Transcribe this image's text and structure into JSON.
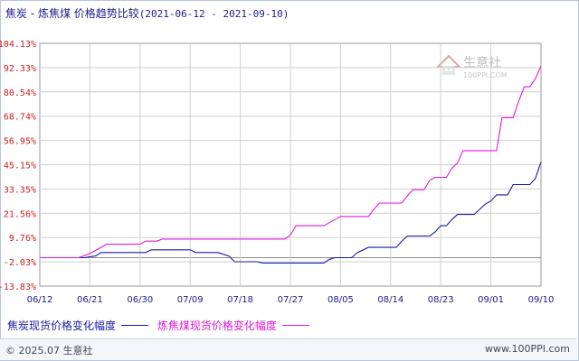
{
  "header": {
    "title": "焦炭 - 炼焦煤 价格趋势比较",
    "date_range": "(2021-06-12 - 2021-09-10)"
  },
  "watermark": {
    "brand": "生意社",
    "site": "100PPI.COM"
  },
  "footer": {
    "copyright": "© 2025.07 生意社",
    "site": "www.100PPI.com"
  },
  "colors": {
    "series1": "#1a1aa6",
    "series2": "#e01bd8",
    "axis_label": "#cc1f1f",
    "grid": "#cfcfcf"
  },
  "chart_data": {
    "type": "line",
    "x_ticks": [
      "06/12",
      "06/21",
      "06/30",
      "07/09",
      "07/18",
      "07/27",
      "08/05",
      "08/14",
      "08/23",
      "09/01",
      "09/10"
    ],
    "y_ticks": [
      "104.13%",
      "92.33%",
      "80.54%",
      "68.74%",
      "56.95%",
      "45.15%",
      "33.35%",
      "21.56%",
      "9.76%",
      "-2.03%",
      "-13.83%"
    ],
    "ylim": [
      -13.83,
      104.13
    ],
    "xlim": [
      "2021-06-12",
      "2021-09-10"
    ],
    "grid": true,
    "legend_position": "bottom",
    "series": [
      {
        "name": "焦炭现货价格变化幅度",
        "points": [
          [
            "2021-06-12",
            0
          ],
          [
            "2021-06-20",
            0
          ],
          [
            "2021-06-22",
            0.8
          ],
          [
            "2021-06-23",
            2.5
          ],
          [
            "2021-07-01",
            2.5
          ],
          [
            "2021-07-02",
            3.8
          ],
          [
            "2021-07-09",
            3.8
          ],
          [
            "2021-07-10",
            2.5
          ],
          [
            "2021-07-14",
            2.5
          ],
          [
            "2021-07-16",
            0.7
          ],
          [
            "2021-07-17",
            -2.0
          ],
          [
            "2021-07-21",
            -2.0
          ],
          [
            "2021-07-22",
            -2.6
          ],
          [
            "2021-08-02",
            -2.6
          ],
          [
            "2021-08-03",
            -0.8
          ],
          [
            "2021-08-04",
            0
          ],
          [
            "2021-08-07",
            0
          ],
          [
            "2021-08-08",
            2.4
          ],
          [
            "2021-08-10",
            5.0
          ],
          [
            "2021-08-15",
            5.0
          ],
          [
            "2021-08-16",
            8.0
          ],
          [
            "2021-08-17",
            10.5
          ],
          [
            "2021-08-21",
            10.5
          ],
          [
            "2021-08-22",
            12.5
          ],
          [
            "2021-08-23",
            15.5
          ],
          [
            "2021-08-24",
            15.5
          ],
          [
            "2021-08-25",
            18.5
          ],
          [
            "2021-08-26",
            21.0
          ],
          [
            "2021-08-29",
            21.0
          ],
          [
            "2021-08-30",
            23.5
          ],
          [
            "2021-08-31",
            26.0
          ],
          [
            "2021-09-01",
            27.5
          ],
          [
            "2021-09-02",
            30.5
          ],
          [
            "2021-09-04",
            30.5
          ],
          [
            "2021-09-05",
            35.5
          ],
          [
            "2021-09-08",
            35.5
          ],
          [
            "2021-09-09",
            38.5
          ],
          [
            "2021-09-10",
            46.5
          ]
        ]
      },
      {
        "name": "炼焦煤现货价格变化幅度",
        "points": [
          [
            "2021-06-12",
            0
          ],
          [
            "2021-06-19",
            0
          ],
          [
            "2021-06-20",
            1.0
          ],
          [
            "2021-06-21",
            2.0
          ],
          [
            "2021-06-22",
            3.5
          ],
          [
            "2021-06-23",
            5.0
          ],
          [
            "2021-06-24",
            6.5
          ],
          [
            "2021-06-30",
            6.5
          ],
          [
            "2021-07-01",
            8.0
          ],
          [
            "2021-07-03",
            8.0
          ],
          [
            "2021-07-04",
            9.0
          ],
          [
            "2021-07-26",
            9.0
          ],
          [
            "2021-07-27",
            11.0
          ],
          [
            "2021-07-28",
            15.5
          ],
          [
            "2021-08-02",
            15.5
          ],
          [
            "2021-08-03",
            17.0
          ],
          [
            "2021-08-04",
            18.5
          ],
          [
            "2021-08-05",
            20.0
          ],
          [
            "2021-08-10",
            20.0
          ],
          [
            "2021-08-11",
            23.5
          ],
          [
            "2021-08-12",
            26.5
          ],
          [
            "2021-08-16",
            26.5
          ],
          [
            "2021-08-17",
            30.0
          ],
          [
            "2021-08-18",
            33.0
          ],
          [
            "2021-08-20",
            33.0
          ],
          [
            "2021-08-21",
            37.5
          ],
          [
            "2021-08-22",
            39.0
          ],
          [
            "2021-08-24",
            39.0
          ],
          [
            "2021-08-25",
            43.5
          ],
          [
            "2021-08-26",
            46.0
          ],
          [
            "2021-08-27",
            52.0
          ],
          [
            "2021-09-02",
            52.0
          ],
          [
            "2021-09-03",
            68.0
          ],
          [
            "2021-09-05",
            68.0
          ],
          [
            "2021-09-06",
            76.0
          ],
          [
            "2021-09-07",
            83.0
          ],
          [
            "2021-09-08",
            83.0
          ],
          [
            "2021-09-09",
            87.0
          ],
          [
            "2021-09-10",
            93.0
          ]
        ]
      }
    ]
  }
}
